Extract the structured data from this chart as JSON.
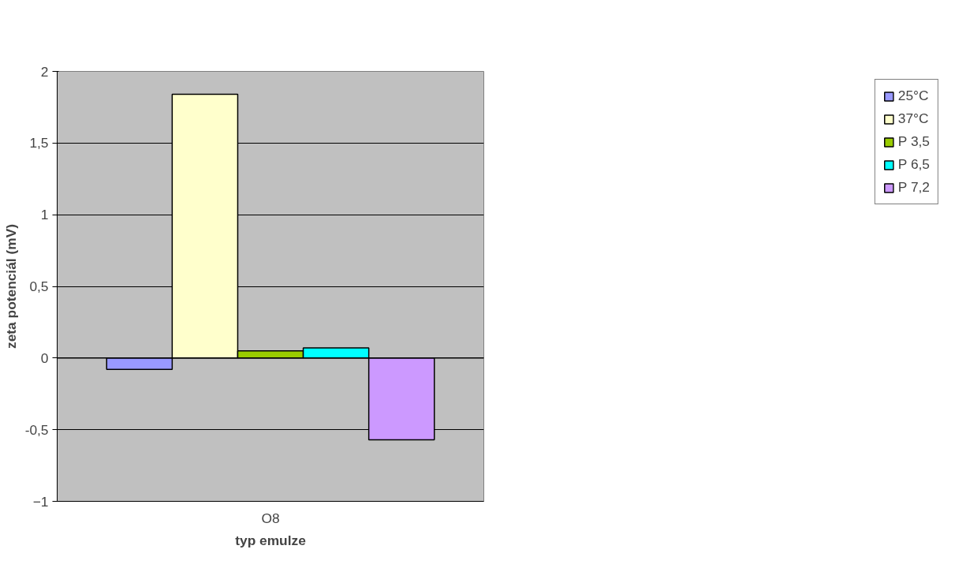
{
  "chart_data": {
    "type": "bar",
    "xlabel": "typ emulze",
    "ylabel": "zeta potenciál (mV)",
    "categories": [
      "O8"
    ],
    "series": [
      {
        "name": "25°C",
        "color": "#9999ff",
        "values": [
          -0.08
        ]
      },
      {
        "name": "37°C",
        "color": "#ffffcc",
        "values": [
          1.84
        ]
      },
      {
        "name": "P 3,5",
        "color": "#99cc00",
        "values": [
          0.05
        ]
      },
      {
        "name": "P 6,5",
        "color": "#00ffff",
        "values": [
          0.07
        ]
      },
      {
        "name": "P 7,2",
        "color": "#cc99ff",
        "values": [
          -0.57
        ]
      }
    ],
    "ylim": [
      -1,
      2
    ],
    "yticks": [
      -1,
      {
        "value": -0.5,
        "label": "-0,5"
      },
      0,
      {
        "value": 0.5,
        "label": "0,5"
      },
      1,
      {
        "value": 1.5,
        "label": "1,5"
      },
      2
    ],
    "grid": "y",
    "legend": "right"
  }
}
